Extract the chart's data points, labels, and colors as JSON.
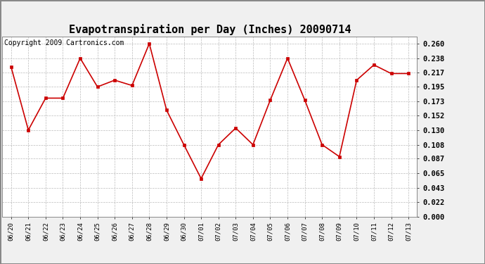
{
  "title": "Evapotranspiration per Day (Inches) 20090714",
  "copyright_text": "Copyright 2009 Cartronics.com",
  "x_labels": [
    "06/20",
    "06/21",
    "06/22",
    "06/23",
    "06/24",
    "06/25",
    "06/26",
    "06/27",
    "06/28",
    "06/29",
    "06/30",
    "07/01",
    "07/02",
    "07/03",
    "07/04",
    "07/05",
    "07/06",
    "07/07",
    "07/08",
    "07/09",
    "07/10",
    "07/11",
    "07/12",
    "07/13"
  ],
  "y_values": [
    0.225,
    0.13,
    0.178,
    0.178,
    0.238,
    0.195,
    0.205,
    0.197,
    0.26,
    0.16,
    0.108,
    0.057,
    0.108,
    0.133,
    0.108,
    0.175,
    0.238,
    0.175,
    0.108,
    0.09,
    0.205,
    0.228,
    0.215,
    0.215
  ],
  "y_ticks": [
    0.0,
    0.022,
    0.043,
    0.065,
    0.087,
    0.108,
    0.13,
    0.152,
    0.173,
    0.195,
    0.217,
    0.238,
    0.26
  ],
  "line_color": "#cc0000",
  "marker_color": "#cc0000",
  "bg_color": "#f0f0f0",
  "plot_bg_color": "#ffffff",
  "grid_color": "#bbbbbb",
  "title_fontsize": 11,
  "copyright_fontsize": 7,
  "ylim_min": 0.0,
  "ylim_max": 0.27
}
